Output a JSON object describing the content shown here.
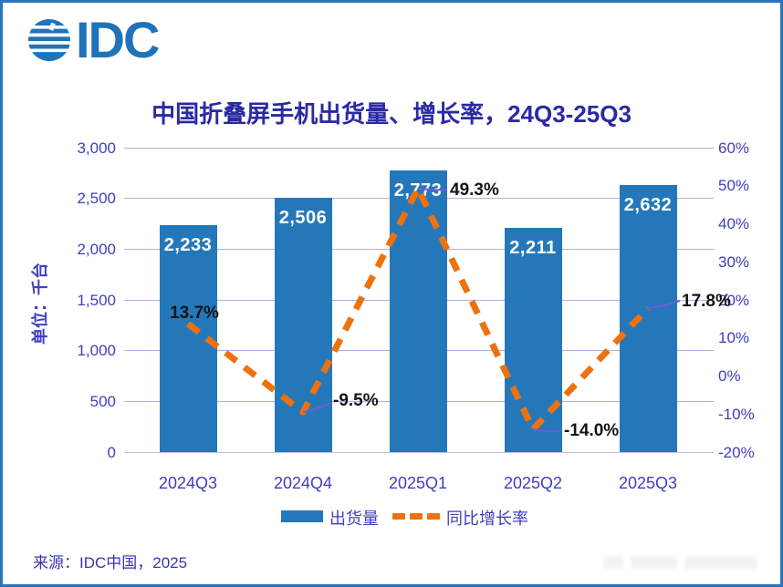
{
  "logo": {
    "text": "IDC"
  },
  "title": "中国折叠屏手机出货量、增长率，24Q3-25Q3",
  "source": "来源：IDC中国，2025",
  "legend": {
    "shipments": "出货量",
    "growth": "同比增长率"
  },
  "colors": {
    "bar": "#2478BA",
    "line": "#ED720E",
    "grid": "#B3ADE6",
    "axis_text": "#3E3EC0",
    "title_text": "#2B2AA3",
    "value_label": "#FFFFFF",
    "growth_label": "#141414",
    "leader_line": "#6A5FD6",
    "border": "#2D73B9",
    "logo": "#2073BB"
  },
  "chart_data": {
    "type": "bar+line",
    "title": "中国折叠屏手机出货量、增长率，24Q3-25Q3",
    "categories": [
      "2024Q3",
      "2024Q4",
      "2025Q1",
      "2025Q2",
      "2025Q3"
    ],
    "series": [
      {
        "name": "出货量",
        "type": "bar",
        "unit": "千台",
        "values": [
          2233,
          2506,
          2773,
          2211,
          2632
        ],
        "labels": [
          "2,233",
          "2,506",
          "2,773",
          "2,211",
          "2,632"
        ]
      },
      {
        "name": "同比增长率",
        "type": "line",
        "style": "dashed",
        "unit": "%",
        "values": [
          13.7,
          -9.5,
          49.3,
          -14.0,
          17.8
        ],
        "labels": [
          "13.7%",
          "-9.5%",
          "49.3%",
          "-14.0%",
          "17.8%"
        ]
      }
    ],
    "left_axis": {
      "label": "单位：千台",
      "ticks": [
        "3,000",
        "2,500",
        "2,000",
        "1,500",
        "1,000",
        "500",
        "0"
      ],
      "range": [
        0,
        3000
      ]
    },
    "right_axis": {
      "ticks": [
        "60%",
        "50%",
        "40%",
        "30%",
        "20%",
        "10%",
        "0%",
        "-10%",
        "-20%"
      ],
      "range": [
        -20,
        60
      ]
    },
    "legend": {
      "position": "bottom",
      "entries": [
        "出货量",
        "同比增长率"
      ]
    },
    "grid": true
  }
}
